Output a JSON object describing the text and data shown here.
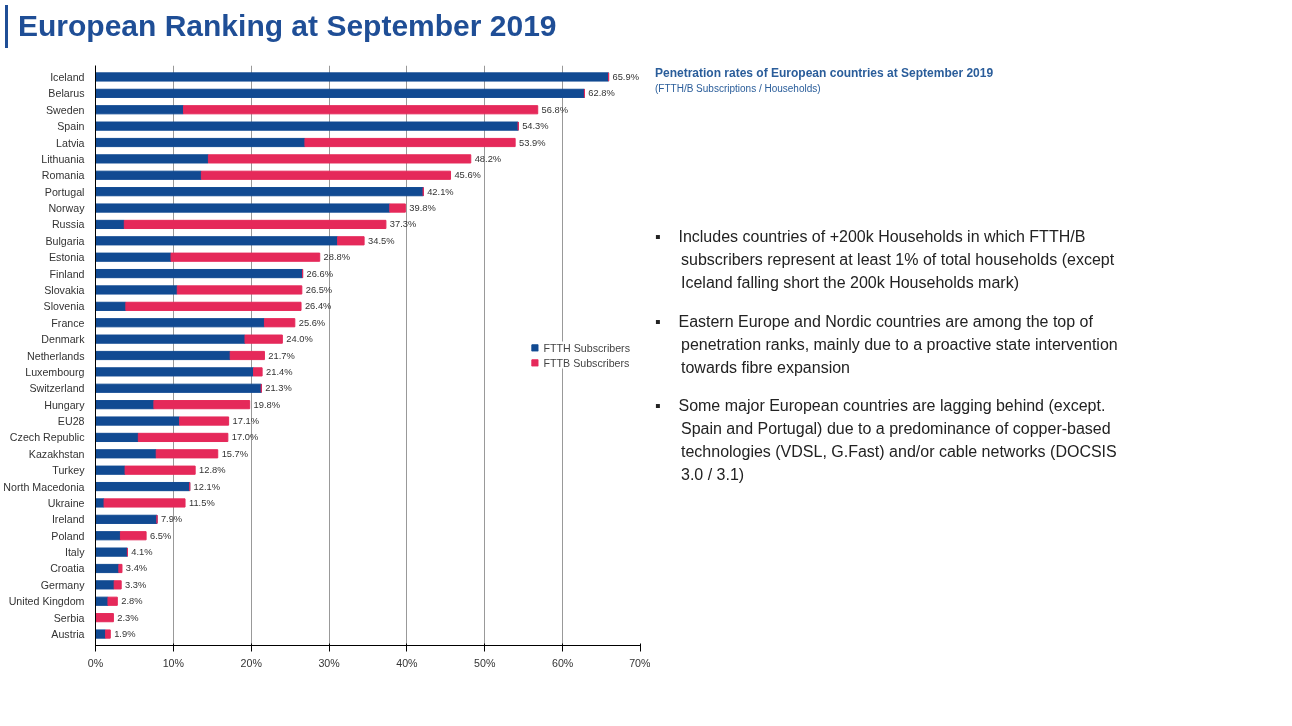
{
  "chart_data": {
    "type": "bar",
    "orientation": "horizontal",
    "stacked": true,
    "title": "European Ranking at September 2019",
    "subtitle": "Penetration rates of European countries at September 2019\n(FTTH/B Subscriptions / Households)",
    "categories": [
      "Iceland",
      "Belarus",
      "Sweden",
      "Spain",
      "Latvia",
      "Lithuania",
      "Romania",
      "Portugal",
      "Norway",
      "Russia",
      "Bulgaria",
      "Estonia",
      "Finland",
      "Slovakia",
      "Slovenia",
      "France",
      "Denmark",
      "Netherlands",
      "Luxembourg",
      "Switzerland",
      "Hungary",
      "EU28",
      "Czech Republic",
      "Kazakhstan",
      "Turkey",
      "North Macedonia",
      "Ukraine",
      "Ireland",
      "Poland",
      "Italy",
      "Croatia",
      "Germany",
      "United Kingdom",
      "Serbia",
      "Austria"
    ],
    "series": [
      {
        "name": "FTTH Subscribers",
        "color": "#114a92",
        "values": [
          65.9,
          62.8,
          11.3,
          54.3,
          26.9,
          14.5,
          13.6,
          42.1,
          37.8,
          3.7,
          31.1,
          9.7,
          26.6,
          10.5,
          3.9,
          21.7,
          19.2,
          17.3,
          20.3,
          21.3,
          7.5,
          10.8,
          5.5,
          7.8,
          3.8,
          12.1,
          1.1,
          7.9,
          3.2,
          4.1,
          3.0,
          2.4,
          1.6,
          0,
          1.3
        ]
      },
      {
        "name": "FTTB Subscribers",
        "color": "#e5295a",
        "values": [
          0,
          0,
          45.5,
          0,
          27.0,
          33.7,
          32.0,
          0,
          2.0,
          33.6,
          3.4,
          19.1,
          0,
          16.0,
          22.5,
          3.9,
          4.8,
          4.4,
          1.1,
          0,
          12.3,
          6.3,
          11.5,
          7.9,
          9.0,
          0,
          10.4,
          0,
          3.3,
          0,
          0.4,
          0.9,
          1.2,
          2.3,
          0.6
        ]
      }
    ],
    "totals": [
      "65.9%",
      "62.8%",
      "56.8%",
      "54.3%",
      "53.9%",
      "48.2%",
      "45.6%",
      "42.1%",
      "39.8%",
      "37.3%",
      "34.5%",
      "28.8%",
      "26.6%",
      "26.5%",
      "26.4%",
      "25.6%",
      "24.0%",
      "21.7%",
      "21.4%",
      "21.3%",
      "19.8%",
      "17.1%",
      "17.0%",
      "15.7%",
      "12.8%",
      "12.1%",
      "11.5%",
      "7.9%",
      "6.5%",
      "4.1%",
      "3.4%",
      "3.3%",
      "2.8%",
      "2.3%",
      "1.9%"
    ],
    "xlim": [
      0,
      70
    ],
    "xticks": [
      {
        "value": 0,
        "label": "0%"
      },
      {
        "value": 10,
        "label": "10%"
      },
      {
        "value": 20,
        "label": "20%"
      },
      {
        "value": 30,
        "label": "30%"
      },
      {
        "value": 40,
        "label": "40%"
      },
      {
        "value": 50,
        "label": "50%"
      },
      {
        "value": 60,
        "label": "60%"
      },
      {
        "value": 70,
        "label": "70%"
      }
    ],
    "grid": "x",
    "legend": "right",
    "annotations": [
      "▪    Includes countries of +200k Households in which FTTH/B subscribers represent at least 1% of total households (except Iceland falling short the 200k Households mark)",
      "▪    Eastern Europe and Nordic countries are among the top of penetration ranks, mainly due to a proactive state intervention towards fibre expansion",
      "▪    Some major European countries are lagging behind (except. Spain and Portugal) due to a predominance of copper-based technologies (VDSL, G.Fast) and/or cable networks (DOCSIS 3.0 / 3.1)"
    ]
  }
}
